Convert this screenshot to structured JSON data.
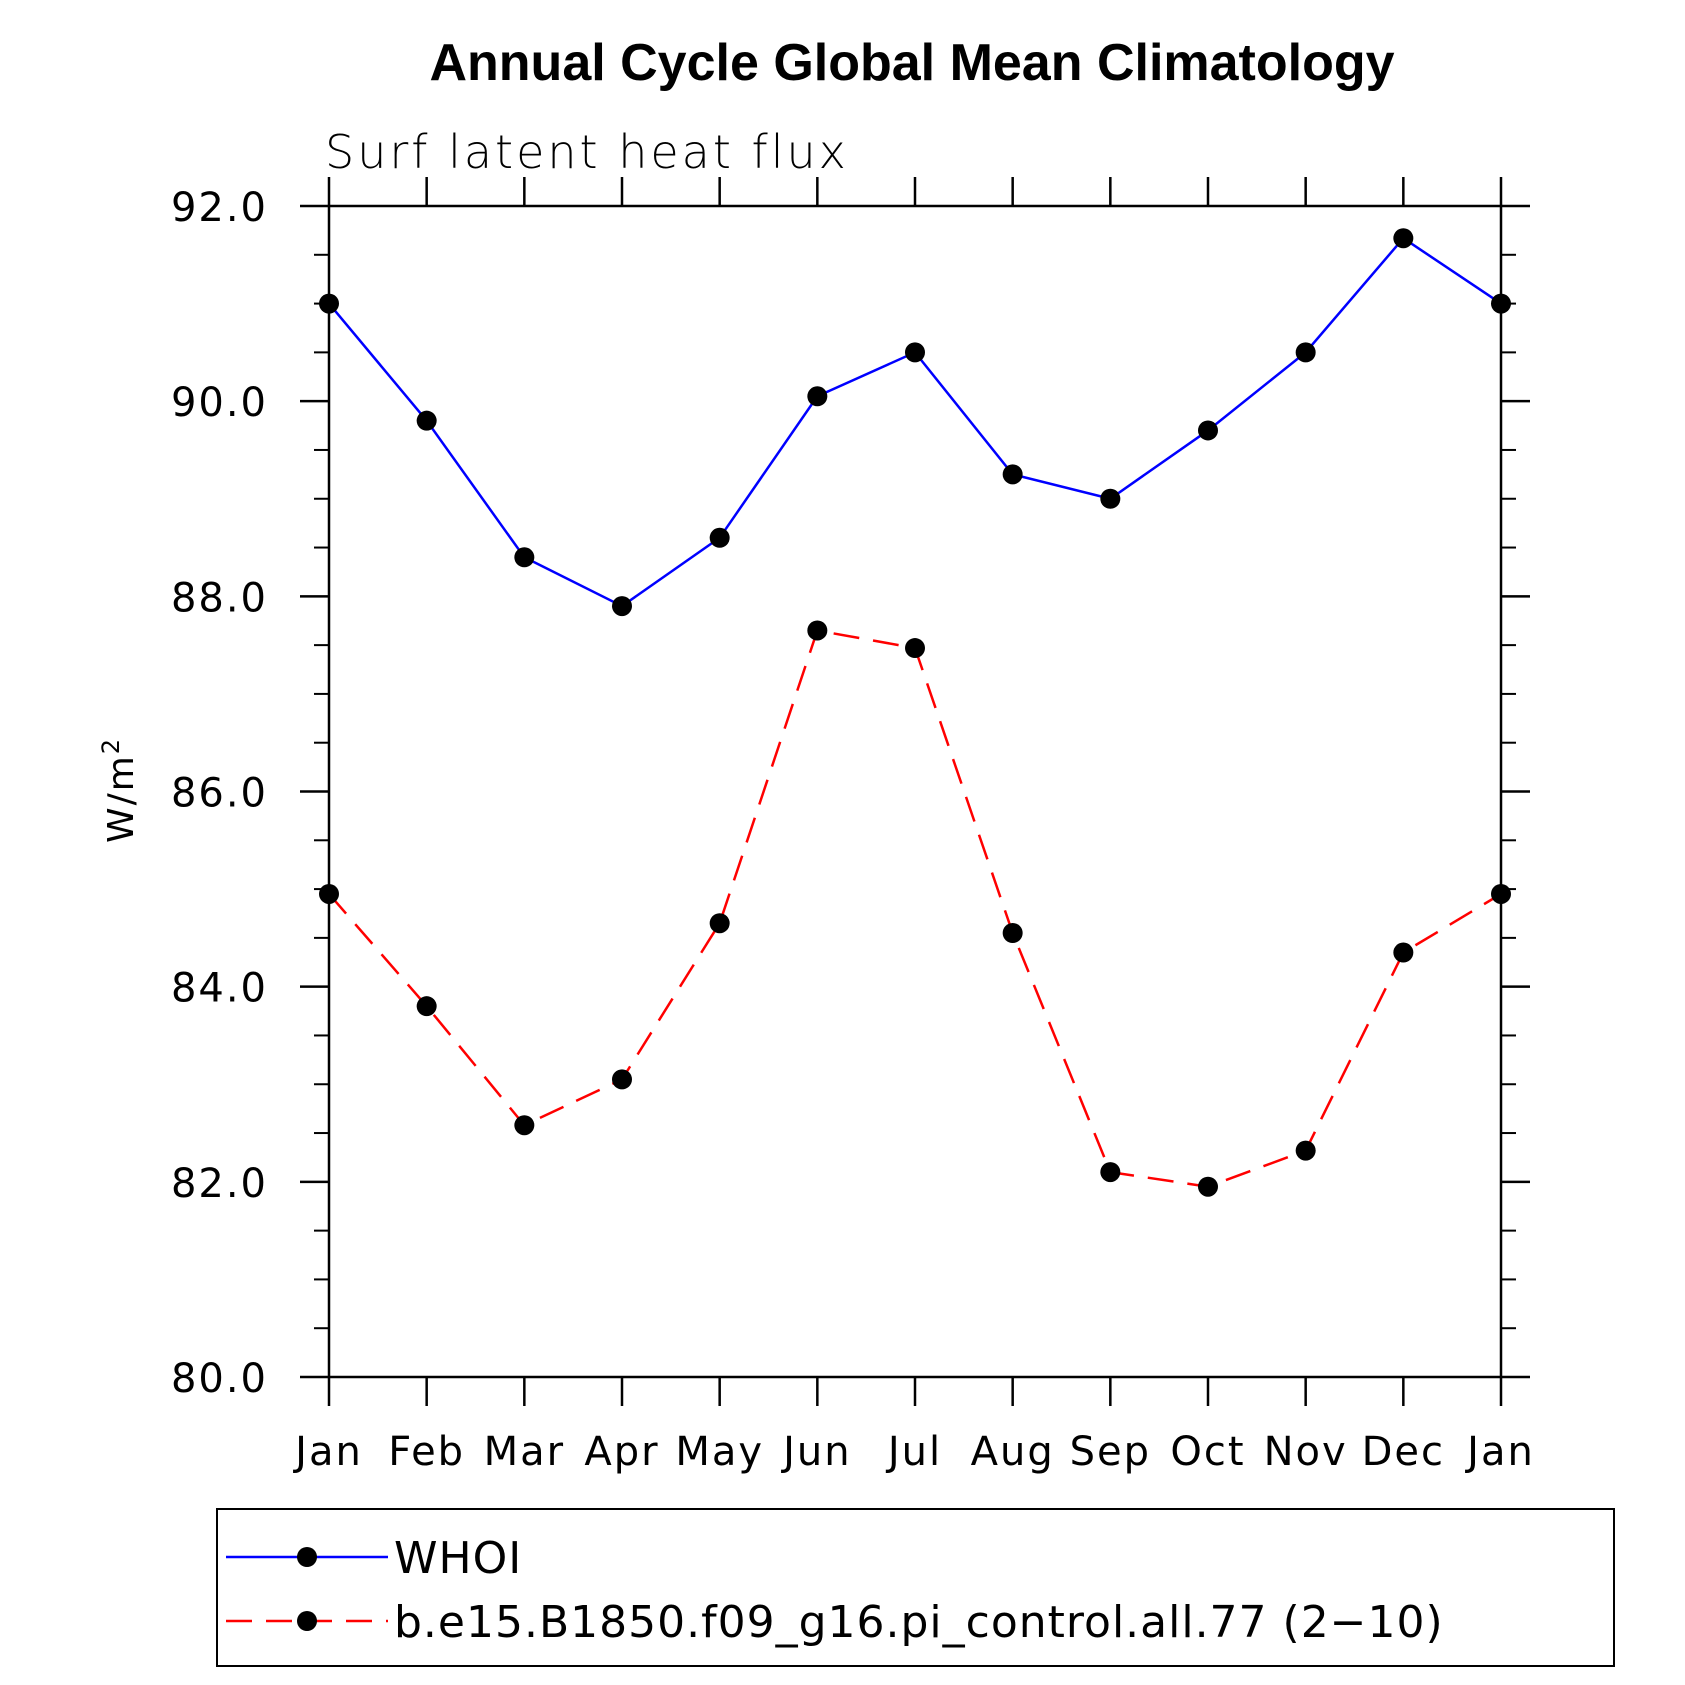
{
  "chart_data": {
    "type": "line",
    "title": "Annual Cycle Global Mean Climatology",
    "subtitle": "Surf latent heat flux",
    "ylabel": "W/m",
    "ylabel_sup": "2",
    "xlabel": "",
    "categories": [
      "Jan",
      "Feb",
      "Mar",
      "Apr",
      "May",
      "Jun",
      "Jul",
      "Aug",
      "Sep",
      "Oct",
      "Nov",
      "Dec",
      "Jan"
    ],
    "ylim": [
      80.0,
      92.0
    ],
    "yticks": [
      "80.0",
      "82.0",
      "84.0",
      "86.0",
      "88.0",
      "90.0",
      "92.0"
    ],
    "ytick_values": [
      80,
      82,
      84,
      86,
      88,
      90,
      92
    ],
    "grid": false,
    "legend_position": "bottom",
    "series": [
      {
        "name": "WHOI",
        "color": "#0000ff",
        "line_style": "solid",
        "marker": "filled-circle",
        "values": [
          91.0,
          89.8,
          88.4,
          87.9,
          88.6,
          90.05,
          90.5,
          89.25,
          89.0,
          89.7,
          90.5,
          91.67,
          91.0
        ]
      },
      {
        "name": "b.e15.B1850.f09_g16.pi_control.all.77 (2−10)",
        "color": "#ff0000",
        "line_style": "dashed",
        "marker": "filled-circle",
        "values": [
          84.95,
          83.8,
          82.58,
          83.05,
          84.65,
          87.65,
          87.47,
          84.55,
          82.1,
          81.95,
          82.32,
          84.35,
          84.95
        ]
      }
    ]
  }
}
